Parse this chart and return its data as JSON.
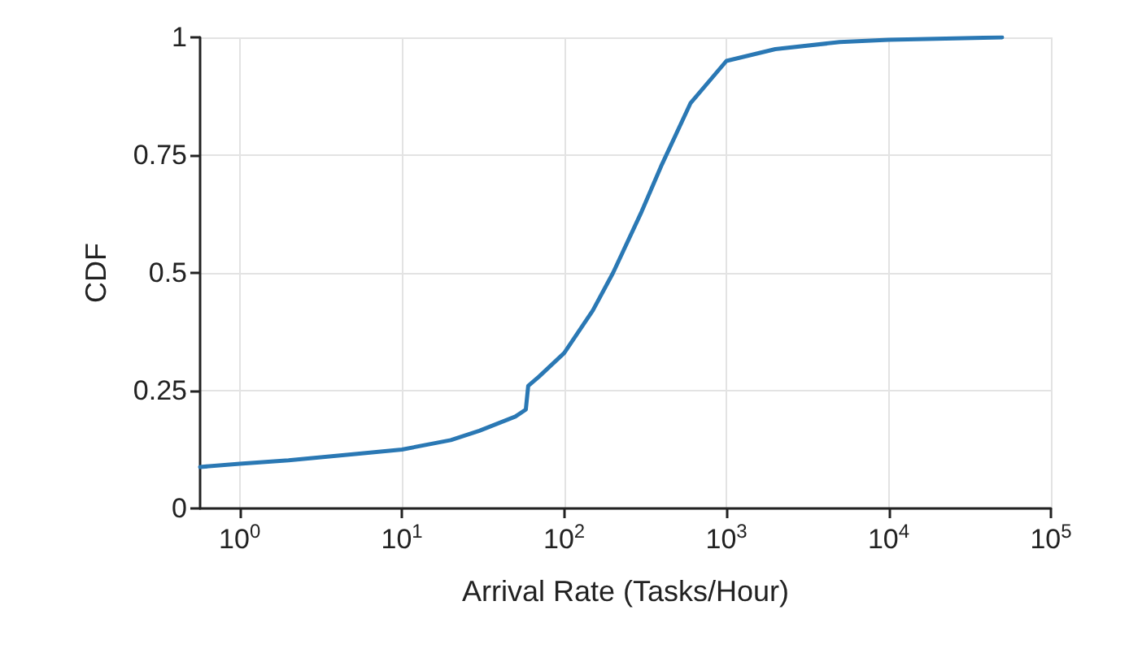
{
  "chart_data": {
    "type": "line",
    "xlabel": "Arrival Rate (Tasks/Hour)",
    "ylabel": "CDF",
    "log": "x",
    "xlim": [
      0.57,
      100000
    ],
    "xticks": [
      {
        "value": 1,
        "label": "10$^{0}$"
      },
      {
        "value": 10,
        "label": "10$^{1}$"
      },
      {
        "value": 100,
        "label": "10$^{2}$"
      },
      {
        "value": 1000,
        "label": "10$^{3}$"
      },
      {
        "value": 10000,
        "label": "10$^{4}$"
      },
      {
        "value": 100000,
        "label": "10$^{5}$"
      }
    ],
    "ylim": [
      0,
      1
    ],
    "yticks": [
      0,
      0.25,
      0.5,
      0.75,
      1
    ],
    "grid": true,
    "marker": "none",
    "line_style": "solid",
    "series": [
      {
        "color": "#2a78b4",
        "x": [
          0.57,
          1,
          2,
          5,
          10,
          20,
          30,
          50,
          58,
          60,
          70,
          100,
          150,
          200,
          300,
          400,
          600,
          1000,
          2000,
          5000,
          10000,
          50000
        ],
        "values": [
          0.088,
          0.095,
          0.102,
          0.115,
          0.125,
          0.145,
          0.165,
          0.195,
          0.21,
          0.26,
          0.28,
          0.33,
          0.42,
          0.5,
          0.63,
          0.73,
          0.86,
          0.95,
          0.975,
          0.99,
          0.995,
          1.0
        ]
      }
    ]
  }
}
